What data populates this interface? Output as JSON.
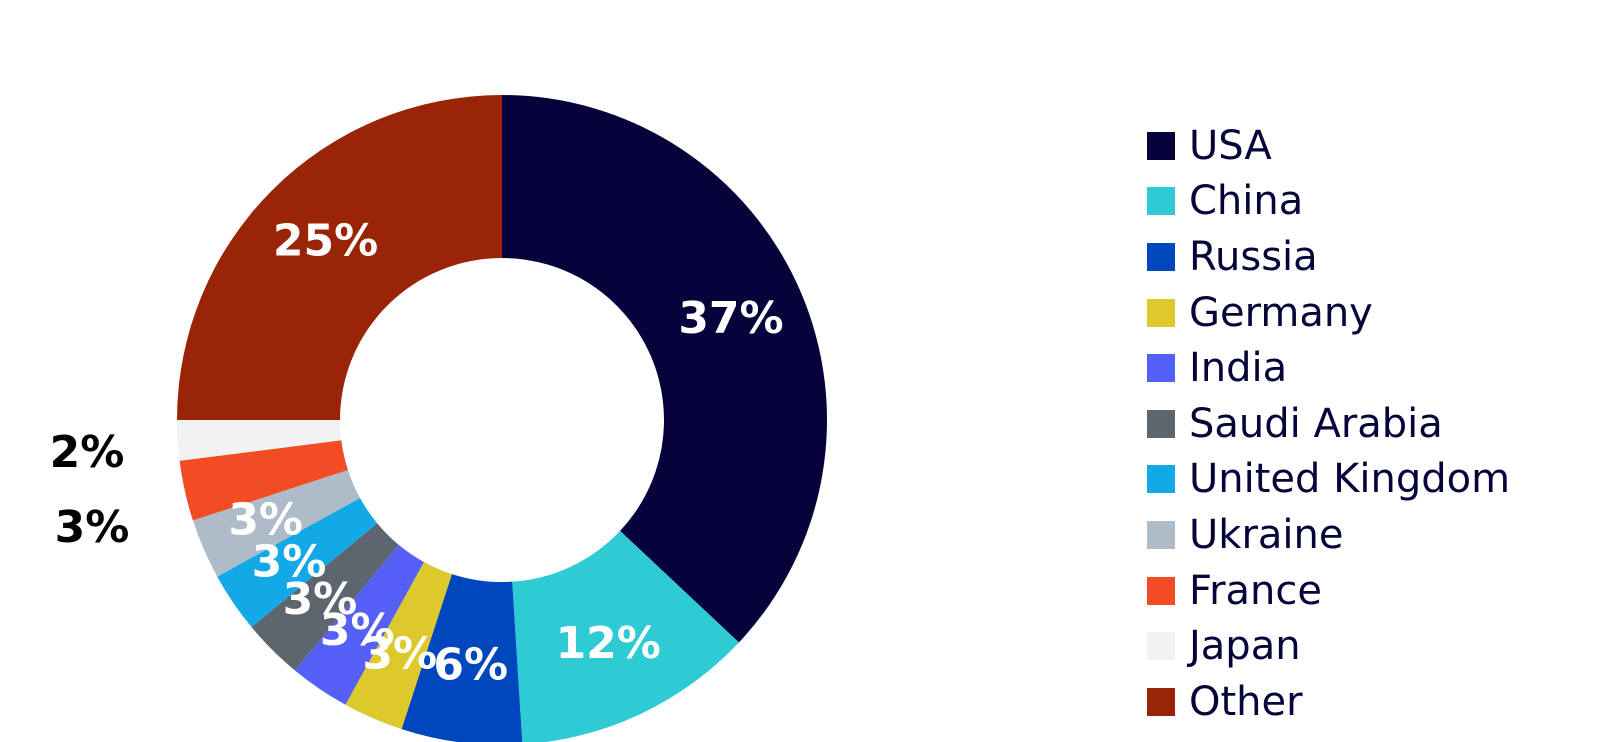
{
  "chart_data": {
    "type": "pie",
    "donut": true,
    "legend_position": "right",
    "series": [
      {
        "name": "USA",
        "value": 37,
        "label": "37%",
        "color": "#05033a",
        "label_color": "#ffffff"
      },
      {
        "name": "China",
        "value": 12,
        "label": "12%",
        "color": "#2ecbd4",
        "label_color": "#ffffff"
      },
      {
        "name": "Russia",
        "value": 6,
        "label": "6%",
        "color": "#0046bd",
        "label_color": "#ffffff"
      },
      {
        "name": "Germany",
        "value": 3,
        "label": "3%",
        "color": "#ddc92c",
        "label_color": "#ffffff"
      },
      {
        "name": "India",
        "value": 3,
        "label": "3%",
        "color": "#5561f6",
        "label_color": "#ffffff"
      },
      {
        "name": "Saudi Arabia",
        "value": 3,
        "label": "3%",
        "color": "#5d666e",
        "label_color": "#ffffff"
      },
      {
        "name": "United Kingdom",
        "value": 3,
        "label": "3%",
        "color": "#12a9e6",
        "label_color": "#ffffff"
      },
      {
        "name": "Ukraine",
        "value": 3,
        "label": "3%",
        "color": "#adbcc8",
        "label_color": "#ffffff"
      },
      {
        "name": "France",
        "value": 3,
        "label": "3%",
        "color": "#f24c25",
        "label_color": "#000000",
        "label_outside": true
      },
      {
        "name": "Japan",
        "value": 2,
        "label": "2%",
        "color": "#f2f2f2",
        "label_color": "#000000",
        "label_outside": true
      },
      {
        "name": "Other",
        "value": 25,
        "label": "25%",
        "color": "#9a2408",
        "label_color": "#ffffff"
      }
    ]
  }
}
